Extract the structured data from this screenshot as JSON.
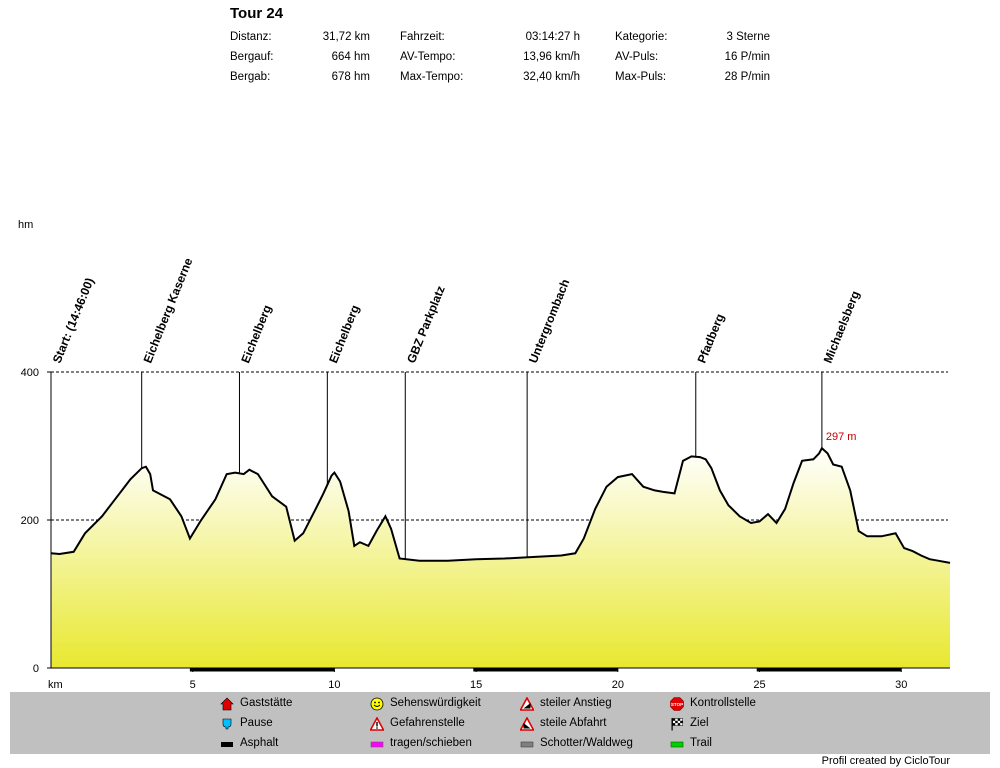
{
  "header": {
    "title": "Tour 24",
    "stats": [
      [
        {
          "label": "Distanz:",
          "value": "31,72 km"
        },
        {
          "label": "Bergauf:",
          "value": "664 hm"
        },
        {
          "label": "Bergab:",
          "value": "678 hm"
        }
      ],
      [
        {
          "label": "Fahrzeit:",
          "value": "03:14:27 h"
        },
        {
          "label": "AV-Tempo:",
          "value": "13,96 km/h"
        },
        {
          "label": "Max-Tempo:",
          "value": "32,40 km/h"
        }
      ],
      [
        {
          "label": "Kategorie:",
          "value": "3 Sterne"
        },
        {
          "label": "AV-Puls:",
          "value": "16 P/min"
        },
        {
          "label": "Max-Puls:",
          "value": "28 P/min"
        }
      ]
    ]
  },
  "chart_data": {
    "type": "area",
    "ylabel": "hm",
    "xlabel": "km",
    "xlim": [
      0,
      31.72
    ],
    "ylim": [
      0,
      400
    ],
    "yticks": [
      0,
      200,
      400
    ],
    "xticks": [
      5,
      10,
      15,
      20,
      25,
      30
    ],
    "gridlines_y": [
      200,
      400
    ],
    "x": [
      0,
      0.3,
      0.8,
      1.2,
      1.8,
      2.3,
      2.8,
      3.2,
      3.35,
      3.5,
      3.6,
      3.7,
      4.2,
      4.6,
      4.9,
      5.3,
      5.8,
      6.2,
      6.5,
      6.8,
      7.0,
      7.1,
      7.3,
      7.5,
      7.8,
      8.3,
      8.6,
      8.9,
      9.3,
      9.6,
      9.9,
      10.0,
      10.2,
      10.5,
      10.7,
      10.9,
      11.2,
      11.5,
      11.8,
      12.0,
      12.3,
      13.0,
      14.0,
      15.0,
      16.0,
      17.0,
      18.0,
      18.5,
      18.8,
      19.2,
      19.6,
      20.0,
      20.5,
      20.9,
      21.3,
      21.6,
      22.0,
      22.3,
      22.6,
      22.9,
      23.1,
      23.3,
      23.6,
      23.9,
      24.3,
      24.7,
      25.0,
      25.3,
      25.6,
      25.9,
      26.2,
      26.5,
      26.9,
      27.1,
      27.2,
      27.4,
      27.6,
      27.9,
      28.2,
      28.5,
      28.8,
      29.3,
      29.8,
      30.1,
      30.4,
      30.7,
      31.0,
      31.3,
      31.72
    ],
    "y": [
      155,
      154,
      157,
      182,
      205,
      230,
      255,
      270,
      272,
      262,
      240,
      238,
      228,
      205,
      175,
      200,
      228,
      262,
      264,
      262,
      268,
      266,
      262,
      250,
      232,
      218,
      172,
      182,
      212,
      235,
      260,
      264,
      252,
      212,
      165,
      170,
      165,
      186,
      205,
      188,
      148,
      145,
      145,
      147,
      148,
      150,
      152,
      155,
      175,
      215,
      245,
      258,
      262,
      245,
      240,
      238,
      236,
      280,
      286,
      285,
      282,
      270,
      240,
      220,
      205,
      196,
      198,
      208,
      196,
      215,
      250,
      280,
      282,
      290,
      297,
      290,
      275,
      272,
      240,
      185,
      178,
      178,
      182,
      162,
      158,
      152,
      147,
      145,
      142
    ],
    "peak_label": {
      "x": 27.2,
      "y": 297,
      "text": "297 m"
    },
    "waypoints": [
      {
        "x": 0,
        "label": "Start: (14:46:00)"
      },
      {
        "x": 3.2,
        "label": "Eichelberg Kaserne"
      },
      {
        "x": 6.65,
        "label": "Eichelberg"
      },
      {
        "x": 9.75,
        "label": "Eichelberg"
      },
      {
        "x": 12.5,
        "label": "GBZ Parkplatz"
      },
      {
        "x": 16.8,
        "label": "Untergrombach"
      },
      {
        "x": 22.75,
        "label": "Pfadberg"
      },
      {
        "x": 27.2,
        "label": "Michaelsberg"
      }
    ],
    "surface_segments": [
      [
        4.9,
        10.0
      ],
      [
        14.9,
        20.0
      ],
      [
        24.9,
        30.0
      ]
    ]
  },
  "legend": {
    "items": [
      {
        "icon": "house-icon",
        "label": "Gaststätte",
        "color": "#ff0000"
      },
      {
        "icon": "cup-icon",
        "label": "Pause",
        "color": "#00c0ff"
      },
      {
        "icon": "asphalt-swatch-icon",
        "label": "Asphalt",
        "color": "#000000"
      },
      {
        "icon": "smiley-icon",
        "label": "Sehenswürdigkeit",
        "color": "#ffff00"
      },
      {
        "icon": "warning-icon",
        "label": "Gefahrenstelle",
        "color": "#ff0000"
      },
      {
        "icon": "push-swatch-icon",
        "label": "tragen/schieben",
        "color": "#ff00ff"
      },
      {
        "icon": "climb-icon",
        "label": "steiler Anstieg",
        "color": "#ff0000"
      },
      {
        "icon": "descent-icon",
        "label": "steile Abfahrt",
        "color": "#ff0000"
      },
      {
        "icon": "gravel-swatch-icon",
        "label": "Schotter/Waldweg",
        "color": "#808080"
      },
      {
        "icon": "stop-icon",
        "label": "Kontrollstelle",
        "color": "#ff0000",
        "text": "STOP"
      },
      {
        "icon": "finish-flag-icon",
        "label": "Ziel",
        "color": "#000000"
      },
      {
        "icon": "trail-swatch-icon",
        "label": "Trail",
        "color": "#00d000"
      }
    ]
  },
  "footer": {
    "credit": "Profil created by CicloTour"
  }
}
